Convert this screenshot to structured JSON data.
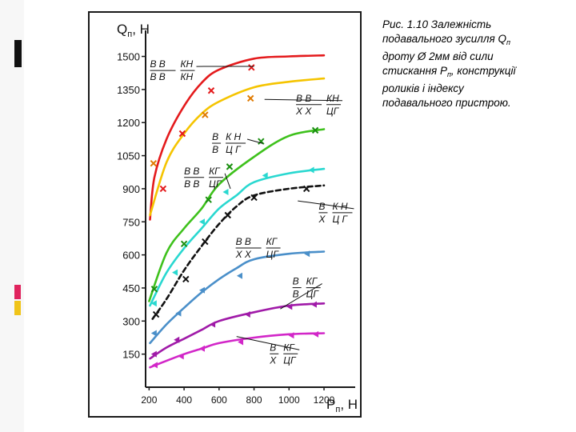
{
  "caption": {
    "line1": "Рис. 1.10 Залежність",
    "line2_pre": "подавального зусилля Q",
    "line2_sub": "п",
    "line3": "дроту Ø 2мм від сили",
    "line4_pre": "стискання Р",
    "line4_sub": "п",
    "line4_post": ", конструкції",
    "line5": "роликів і індексу",
    "line6": "подавального пристрою."
  },
  "colors": {
    "frame": "#1a1a1a",
    "deco_red": "#e0245e",
    "deco_yellow": "#f0c419",
    "deco_black": "#111111"
  },
  "chart_data": {
    "type": "line",
    "ylabel_main": "Q",
    "ylabel_sub": "п",
    "ylabel_unit": ", Н",
    "xlabel_main": "Р",
    "xlabel_sub": "п",
    "xlabel_unit": ", Н",
    "xlim": [
      180,
      1360
    ],
    "ylim": [
      0,
      1560
    ],
    "x_ticks": [
      200,
      400,
      600,
      800,
      1000,
      1200
    ],
    "y_ticks": [
      150,
      300,
      450,
      600,
      750,
      900,
      1050,
      1200,
      1350,
      1500
    ],
    "series": [
      {
        "color": "#e41a1c",
        "marker": "x",
        "dashed": false,
        "curve": [
          [
            205,
            760
          ],
          [
            230,
            950
          ],
          [
            300,
            1125
          ],
          [
            400,
            1275
          ],
          [
            500,
            1380
          ],
          [
            600,
            1440
          ],
          [
            800,
            1490
          ],
          [
            1000,
            1500
          ],
          [
            1200,
            1505
          ]
        ],
        "points": [
          [
            280,
            900
          ],
          [
            390,
            1150
          ],
          [
            555,
            1345
          ],
          [
            785,
            1450
          ]
        ]
      },
      {
        "color": "#f5c400",
        "marker": "x",
        "dashed": false,
        "curve": [
          [
            205,
            780
          ],
          [
            300,
            1020
          ],
          [
            400,
            1150
          ],
          [
            500,
            1240
          ],
          [
            600,
            1295
          ],
          [
            800,
            1360
          ],
          [
            1000,
            1385
          ],
          [
            1200,
            1400
          ]
        ],
        "points": [
          [
            225,
            1015
          ],
          [
            520,
            1235
          ],
          [
            780,
            1310
          ]
        ]
      },
      {
        "color": "#3ec11c",
        "marker": "x",
        "dashed": false,
        "curve": [
          [
            200,
            390
          ],
          [
            300,
            610
          ],
          [
            400,
            720
          ],
          [
            500,
            810
          ],
          [
            600,
            920
          ],
          [
            800,
            1045
          ],
          [
            1000,
            1140
          ],
          [
            1200,
            1170
          ]
        ],
        "points": [
          [
            230,
            445
          ],
          [
            400,
            650
          ],
          [
            540,
            850
          ],
          [
            660,
            1000
          ],
          [
            840,
            1115
          ],
          [
            1150,
            1165
          ]
        ]
      },
      {
        "color": "#29d8d0",
        "marker": "tri",
        "dashed": false,
        "curve": [
          [
            205,
            370
          ],
          [
            300,
            520
          ],
          [
            400,
            630
          ],
          [
            500,
            720
          ],
          [
            600,
            810
          ],
          [
            700,
            870
          ],
          [
            800,
            930
          ],
          [
            1000,
            970
          ],
          [
            1200,
            990
          ]
        ],
        "points": [
          [
            225,
            380
          ],
          [
            345,
            520
          ],
          [
            500,
            750
          ],
          [
            635,
            885
          ],
          [
            860,
            960
          ],
          [
            1125,
            985
          ]
        ]
      },
      {
        "color": "#111111",
        "marker": "x",
        "dashed": true,
        "curve": [
          [
            220,
            310
          ],
          [
            300,
            400
          ],
          [
            400,
            530
          ],
          [
            500,
            640
          ],
          [
            600,
            740
          ],
          [
            700,
            820
          ],
          [
            800,
            870
          ],
          [
            1000,
            900
          ],
          [
            1200,
            915
          ]
        ],
        "points": [
          [
            240,
            330
          ],
          [
            410,
            490
          ],
          [
            520,
            660
          ],
          [
            650,
            780
          ],
          [
            800,
            860
          ],
          [
            1100,
            900
          ]
        ]
      },
      {
        "color": "#4a8fc9",
        "marker": "tri",
        "dashed": false,
        "curve": [
          [
            205,
            200
          ],
          [
            300,
            285
          ],
          [
            400,
            360
          ],
          [
            500,
            430
          ],
          [
            600,
            490
          ],
          [
            700,
            540
          ],
          [
            800,
            580
          ],
          [
            1000,
            605
          ],
          [
            1200,
            615
          ]
        ],
        "points": [
          [
            225,
            245
          ],
          [
            365,
            335
          ],
          [
            500,
            440
          ],
          [
            715,
            505
          ],
          [
            1100,
            605
          ]
        ]
      },
      {
        "color": "#a01aa8",
        "marker": "tri",
        "dashed": false,
        "curve": [
          [
            205,
            130
          ],
          [
            300,
            180
          ],
          [
            400,
            220
          ],
          [
            500,
            260
          ],
          [
            600,
            300
          ],
          [
            800,
            340
          ],
          [
            1000,
            370
          ],
          [
            1200,
            380
          ]
        ],
        "points": [
          [
            225,
            150
          ],
          [
            355,
            215
          ],
          [
            560,
            285
          ],
          [
            760,
            330
          ],
          [
            1000,
            365
          ],
          [
            1140,
            375
          ]
        ]
      },
      {
        "color": "#d226c8",
        "marker": "tri",
        "dashed": false,
        "curve": [
          [
            205,
            90
          ],
          [
            300,
            120
          ],
          [
            400,
            150
          ],
          [
            500,
            175
          ],
          [
            600,
            200
          ],
          [
            800,
            225
          ],
          [
            1000,
            240
          ],
          [
            1200,
            245
          ]
        ],
        "points": [
          [
            230,
            100
          ],
          [
            380,
            140
          ],
          [
            500,
            175
          ],
          [
            720,
            205
          ],
          [
            1010,
            235
          ],
          [
            1150,
            240
          ]
        ]
      }
    ],
    "annotations": [
      {
        "num": "В  В",
        "den": "В  В",
        "right_num": "КН",
        "right_den": "КН",
        "ax": 205,
        "ay": 1440,
        "tx": 800,
        "ty": 1455
      },
      {
        "num": "В  В",
        "den": "Х  Х",
        "right_num": "КН",
        "right_den": "ЦГ",
        "ax": 1040,
        "ay": 1285,
        "tx": 860,
        "ty": 1305
      },
      {
        "num": "В",
        "den": "В",
        "right_num": "К Н",
        "right_den": "Ц Г",
        "ax": 560,
        "ay": 1110,
        "tx": 850,
        "ty": 1105
      },
      {
        "num": "В В",
        "den": "В В",
        "right_num": "КГ",
        "right_den": "ЦГ",
        "ax": 400,
        "ay": 955,
        "tx": 665,
        "ty": 900
      },
      {
        "num": "В",
        "den": "Х",
        "right_num": "К Н",
        "right_den": "Ц Г",
        "ax": 1170,
        "ay": 795,
        "tx": 1050,
        "ty": 845
      },
      {
        "num": "В  В",
        "den": "Х  Х",
        "right_num": "КГ",
        "right_den": "ЦГ",
        "ax": 695,
        "ay": 635,
        "tx": 0,
        "ty": 0
      },
      {
        "num": "В",
        "den": "В",
        "right_num": "КГ",
        "right_den": "ЦГ",
        "ax": 1020,
        "ay": 455,
        "tx": 950,
        "ty": 355
      },
      {
        "num": "В",
        "den": "Х",
        "right_num": "КГ",
        "right_den": "ЦГ",
        "ax": 890,
        "ay": 155,
        "tx": 700,
        "ty": 230
      }
    ]
  }
}
